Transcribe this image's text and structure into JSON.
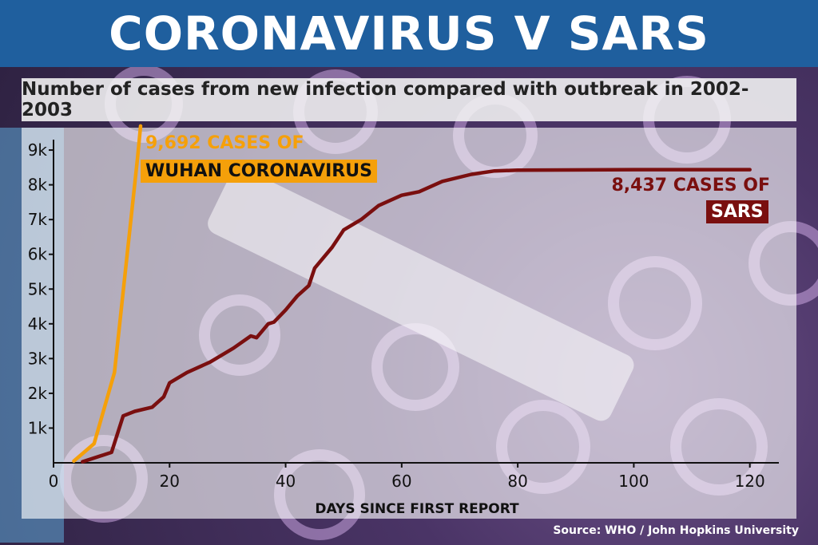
{
  "header": {
    "title": "CORONAVIRUS V SARS",
    "subtitle": "Number of cases from new infection compared with outbreak in 2002-2003"
  },
  "source": "Source: WHO / John Hopkins University",
  "colors": {
    "header_bg": "#1f5f9e",
    "wuhan": "#f5a00a",
    "sars": "#7a0f0f"
  },
  "annotations": {
    "wuhan_line1": "9,692 CASES OF",
    "wuhan_line2": "WUHAN CORONAVIRUS",
    "sars_line1": "8,437 CASES OF",
    "sars_line2": "SARS"
  },
  "chart_data": {
    "type": "line",
    "xlabel": "DAYS SINCE FIRST REPORT",
    "ylabel": "",
    "xlim": [
      0,
      125
    ],
    "ylim": [
      0,
      9300
    ],
    "x_ticks": [
      0,
      20,
      40,
      60,
      80,
      100,
      120
    ],
    "x_tick_labels": [
      "0",
      "20",
      "40",
      "60",
      "80",
      "100",
      "120"
    ],
    "y_ticks": [
      1000,
      2000,
      3000,
      4000,
      5000,
      6000,
      7000,
      8000,
      9000
    ],
    "y_tick_labels": [
      "1k",
      "2k",
      "3k",
      "4k",
      "5k",
      "6k",
      "7k",
      "8k",
      "9k"
    ],
    "grid": false,
    "series": [
      {
        "name": "WUHAN CORONAVIRUS",
        "color": "#f5a00a",
        "points": [
          [
            3.5,
            50
          ],
          [
            7,
            550
          ],
          [
            10.5,
            2600
          ],
          [
            14.5,
            8800
          ],
          [
            15,
            9692
          ]
        ]
      },
      {
        "name": "SARS",
        "color": "#7a0f0f",
        "points": [
          [
            5,
            30
          ],
          [
            10,
            300
          ],
          [
            12,
            1350
          ],
          [
            14,
            1480
          ],
          [
            17,
            1600
          ],
          [
            19,
            1900
          ],
          [
            20,
            2300
          ],
          [
            23,
            2600
          ],
          [
            27,
            2900
          ],
          [
            31,
            3300
          ],
          [
            34,
            3650
          ],
          [
            35,
            3600
          ],
          [
            37,
            4000
          ],
          [
            38,
            4050
          ],
          [
            40,
            4400
          ],
          [
            42,
            4800
          ],
          [
            44,
            5100
          ],
          [
            45,
            5600
          ],
          [
            48,
            6200
          ],
          [
            50,
            6700
          ],
          [
            53,
            7000
          ],
          [
            56,
            7400
          ],
          [
            60,
            7700
          ],
          [
            63,
            7800
          ],
          [
            67,
            8100
          ],
          [
            72,
            8300
          ],
          [
            76,
            8400
          ],
          [
            80,
            8420
          ],
          [
            100,
            8437
          ],
          [
            120,
            8437
          ]
        ]
      }
    ]
  }
}
